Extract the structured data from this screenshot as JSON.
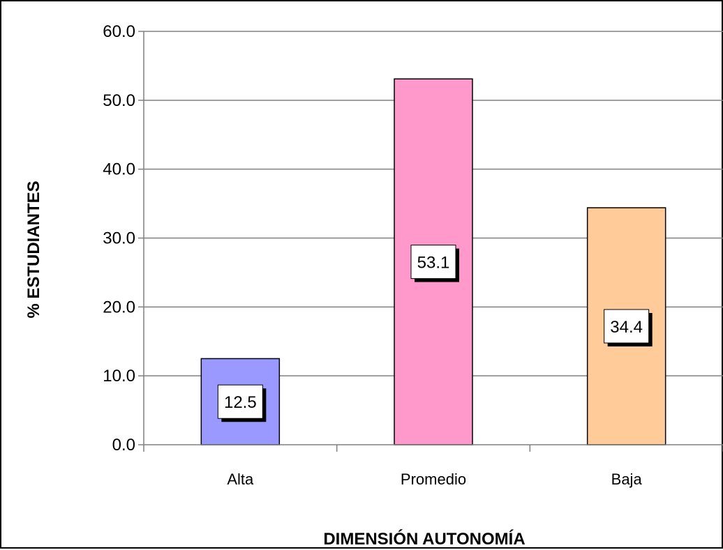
{
  "chart_data": {
    "type": "bar",
    "categories": [
      "Alta",
      "Promedio",
      "Baja"
    ],
    "values": [
      12.5,
      53.1,
      34.4
    ],
    "data_labels": [
      "12.5",
      "53.1",
      "34.4"
    ],
    "colors": [
      "#9999ff",
      "#ff99cc",
      "#ffcc99"
    ],
    "xlabel": "DIMENSIÓN AUTONOMÍA",
    "ylabel": "% ESTUDIANTES",
    "ylim": [
      0,
      60
    ],
    "yticks": [
      0,
      10,
      20,
      30,
      40,
      50,
      60
    ],
    "ytick_labels": [
      "0.0",
      "10.0",
      "20.0",
      "30.0",
      "40.0",
      "50.0",
      "60.0"
    ],
    "grid": true,
    "legend": "none"
  }
}
